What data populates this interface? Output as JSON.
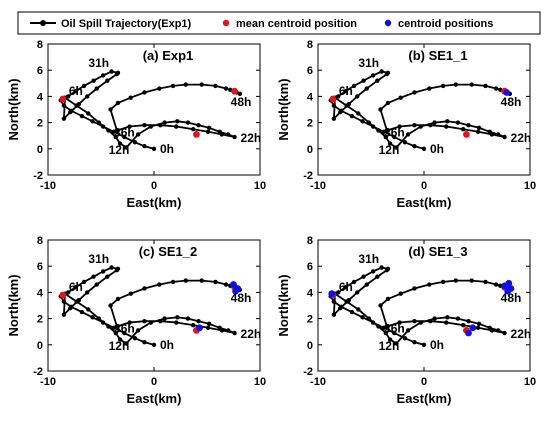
{
  "colors": {
    "trajectory": "#000000",
    "mean_centroid": "#e8121a",
    "centroid": "#1010e0",
    "panel_background": "#ffffff"
  },
  "legend": {
    "items": [
      {
        "label": "Oil Spill Trajectory(Exp1)",
        "marker": "line-dot",
        "color": "#000000"
      },
      {
        "label": "mean centroid position",
        "marker": "dot",
        "color": "#e8121a"
      },
      {
        "label": "centroid positions",
        "marker": "dot",
        "color": "#1010e0"
      }
    ]
  },
  "chart_data": [
    {
      "type": "line",
      "title": "(a) Exp1",
      "xlabel": "East(km)",
      "ylabel": "North(km)",
      "xlim": [
        -10,
        10
      ],
      "ylim": [
        -2,
        8
      ],
      "xticks": [
        -10,
        0,
        10
      ],
      "yticks": [
        -2,
        0,
        2,
        4,
        6,
        8
      ],
      "series": [
        {
          "name": "Oil Spill Trajectory(Exp1)",
          "type": "line",
          "x": [
            0,
            -0.9,
            -1.8,
            -2.8,
            -3.8,
            -4.8,
            -5.8,
            -6.8,
            -7.8,
            -8.5,
            -8.8,
            -8.1,
            -7.4,
            -6.6,
            -5.7,
            -4.8,
            -4.0,
            -3.4,
            -3.5,
            -4.4,
            -5.4,
            -6.3,
            -7.1,
            -7.9,
            -8.5,
            -8.4,
            -7.3,
            -6.2,
            -5.2,
            -4.3,
            -3.6,
            -3.2,
            -2.6,
            -1.5,
            -0.3,
            1.0,
            2.2,
            3.2,
            4.2,
            5.2,
            6.2,
            7.0,
            7.6,
            6.4,
            5.1,
            3.7,
            2.1,
            0.6,
            -0.9,
            -2.3,
            -3.5,
            -4.1,
            -3.4,
            -2.2,
            -0.9,
            0.5,
            1.8,
            3.0,
            4.5,
            5.8,
            6.8,
            7.2,
            7.8,
            8.1
          ],
          "y": [
            0,
            0.2,
            0.5,
            0.9,
            1.3,
            1.7,
            2.1,
            2.5,
            2.9,
            3.3,
            3.7,
            4.0,
            4.4,
            4.8,
            5.2,
            5.6,
            5.9,
            5.8,
            5.7,
            5.2,
            4.6,
            4.0,
            3.4,
            2.8,
            2.3,
            3.9,
            3.3,
            2.7,
            2.0,
            1.4,
            0.9,
            0.4,
            0.1,
            1.1,
            1.7,
            2.0,
            2.1,
            2.0,
            1.8,
            1.6,
            1.3,
            1.1,
            0.9,
            1.1,
            1.3,
            1.5,
            1.7,
            1.8,
            1.8,
            1.7,
            1.4,
            3.0,
            3.5,
            3.9,
            4.3,
            4.6,
            4.8,
            4.9,
            4.9,
            4.8,
            4.6,
            4.5,
            4.3,
            4.2
          ]
        },
        {
          "name": "mean centroid position",
          "type": "scatter",
          "x": [
            -8.6,
            4.0,
            7.6
          ],
          "y": [
            3.8,
            1.1,
            4.4
          ]
        }
      ],
      "annotations": [
        {
          "text": "0h",
          "x": 0,
          "y": 0
        },
        {
          "text": "6h",
          "x": -8.6,
          "y": 3.8
        },
        {
          "text": "12h",
          "x": -4.0,
          "y": 0.2
        },
        {
          "text": "22h",
          "x": 7.6,
          "y": 0.9
        },
        {
          "text": "31h",
          "x": -6.0,
          "y": 5.8
        },
        {
          "text": "36h",
          "x": -3.2,
          "y": 2.0
        },
        {
          "text": "48h",
          "x": 7.8,
          "y": 4.2
        }
      ]
    },
    {
      "type": "line",
      "title": "(b) SE1_1",
      "xlabel": "East(km)",
      "ylabel": "North(km)",
      "xlim": [
        -10,
        10
      ],
      "ylim": [
        -2,
        8
      ],
      "xticks": [
        -10,
        0,
        10
      ],
      "yticks": [
        -2,
        0,
        2,
        4,
        6,
        8
      ],
      "series": [
        {
          "name": "Oil Spill Trajectory(Exp1)",
          "type": "line",
          "x": [
            0,
            -0.9,
            -1.8,
            -2.8,
            -3.8,
            -4.8,
            -5.8,
            -6.8,
            -7.8,
            -8.5,
            -8.8,
            -8.1,
            -7.4,
            -6.6,
            -5.7,
            -4.8,
            -4.0,
            -3.4,
            -3.5,
            -4.4,
            -5.4,
            -6.3,
            -7.1,
            -7.9,
            -8.5,
            -8.4,
            -7.3,
            -6.2,
            -5.2,
            -4.3,
            -3.6,
            -3.2,
            -2.6,
            -1.5,
            -0.3,
            1.0,
            2.2,
            3.2,
            4.2,
            5.2,
            6.2,
            7.0,
            7.6,
            6.4,
            5.1,
            3.7,
            2.1,
            0.6,
            -0.9,
            -2.3,
            -3.5,
            -4.1,
            -3.4,
            -2.2,
            -0.9,
            0.5,
            1.8,
            3.0,
            4.5,
            5.8,
            6.8,
            7.2,
            7.8,
            8.1
          ],
          "y": [
            0,
            0.2,
            0.5,
            0.9,
            1.3,
            1.7,
            2.1,
            2.5,
            2.9,
            3.3,
            3.7,
            4.0,
            4.4,
            4.8,
            5.2,
            5.6,
            5.9,
            5.8,
            5.7,
            5.2,
            4.6,
            4.0,
            3.4,
            2.8,
            2.3,
            3.9,
            3.3,
            2.7,
            2.0,
            1.4,
            0.9,
            0.4,
            0.1,
            1.1,
            1.7,
            2.0,
            2.1,
            2.0,
            1.8,
            1.6,
            1.3,
            1.1,
            0.9,
            1.1,
            1.3,
            1.5,
            1.7,
            1.8,
            1.8,
            1.7,
            1.4,
            3.0,
            3.5,
            3.9,
            4.3,
            4.6,
            4.8,
            4.9,
            4.9,
            4.8,
            4.6,
            4.5,
            4.3,
            4.2
          ]
        },
        {
          "name": "mean centroid position",
          "type": "scatter",
          "x": [
            -8.6,
            4.0,
            7.6
          ],
          "y": [
            3.8,
            1.1,
            4.4
          ]
        },
        {
          "name": "centroid positions",
          "type": "scatter",
          "x": [
            7.8
          ],
          "y": [
            4.3
          ]
        }
      ],
      "annotations": [
        {
          "text": "0h",
          "x": 0,
          "y": 0
        },
        {
          "text": "6h",
          "x": -8.6,
          "y": 3.8
        },
        {
          "text": "12h",
          "x": -4.0,
          "y": 0.2
        },
        {
          "text": "22h",
          "x": 7.6,
          "y": 0.9
        },
        {
          "text": "31h",
          "x": -6.0,
          "y": 5.8
        },
        {
          "text": "36h",
          "x": -3.2,
          "y": 2.0
        },
        {
          "text": "48h",
          "x": 7.8,
          "y": 4.2
        }
      ]
    },
    {
      "type": "line",
      "title": "(c) SE1_2",
      "xlabel": "East(km)",
      "ylabel": "North(km)",
      "xlim": [
        -10,
        10
      ],
      "ylim": [
        -2,
        8
      ],
      "xticks": [
        -10,
        0,
        10
      ],
      "yticks": [
        -2,
        0,
        2,
        4,
        6,
        8
      ],
      "series": [
        {
          "name": "Oil Spill Trajectory(Exp1)",
          "type": "line",
          "x": [
            0,
            -0.9,
            -1.8,
            -2.8,
            -3.8,
            -4.8,
            -5.8,
            -6.8,
            -7.8,
            -8.5,
            -8.8,
            -8.1,
            -7.4,
            -6.6,
            -5.7,
            -4.8,
            -4.0,
            -3.4,
            -3.5,
            -4.4,
            -5.4,
            -6.3,
            -7.1,
            -7.9,
            -8.5,
            -8.4,
            -7.3,
            -6.2,
            -5.2,
            -4.3,
            -3.6,
            -3.2,
            -2.6,
            -1.5,
            -0.3,
            1.0,
            2.2,
            3.2,
            4.2,
            5.2,
            6.2,
            7.0,
            7.6,
            6.4,
            5.1,
            3.7,
            2.1,
            0.6,
            -0.9,
            -2.3,
            -3.5,
            -4.1,
            -3.4,
            -2.2,
            -0.9,
            0.5,
            1.8,
            3.0,
            4.5,
            5.8,
            6.8,
            7.2,
            7.8,
            8.1
          ],
          "y": [
            0,
            0.2,
            0.5,
            0.9,
            1.3,
            1.7,
            2.1,
            2.5,
            2.9,
            3.3,
            3.7,
            4.0,
            4.4,
            4.8,
            5.2,
            5.6,
            5.9,
            5.8,
            5.7,
            5.2,
            4.6,
            4.0,
            3.4,
            2.8,
            2.3,
            3.9,
            3.3,
            2.7,
            2.0,
            1.4,
            0.9,
            0.4,
            0.1,
            1.1,
            1.7,
            2.0,
            2.1,
            2.0,
            1.8,
            1.6,
            1.3,
            1.1,
            0.9,
            1.1,
            1.3,
            1.5,
            1.7,
            1.8,
            1.8,
            1.7,
            1.4,
            3.0,
            3.5,
            3.9,
            4.3,
            4.6,
            4.8,
            4.9,
            4.9,
            4.8,
            4.6,
            4.5,
            4.3,
            4.2
          ]
        },
        {
          "name": "mean centroid position",
          "type": "scatter",
          "x": [
            -8.6,
            4.0,
            7.6
          ],
          "y": [
            3.8,
            1.1,
            4.4
          ]
        },
        {
          "name": "centroid positions",
          "type": "scatter",
          "x": [
            4.3,
            7.5,
            7.9,
            7.7
          ],
          "y": [
            1.3,
            4.6,
            4.3,
            4.1
          ]
        }
      ],
      "annotations": [
        {
          "text": "0h",
          "x": 0,
          "y": 0
        },
        {
          "text": "6h",
          "x": -8.6,
          "y": 3.8
        },
        {
          "text": "12h",
          "x": -4.0,
          "y": 0.2
        },
        {
          "text": "22h",
          "x": 7.6,
          "y": 0.9
        },
        {
          "text": "31h",
          "x": -6.0,
          "y": 5.8
        },
        {
          "text": "36h",
          "x": -3.2,
          "y": 2.0
        },
        {
          "text": "48h",
          "x": 7.8,
          "y": 4.2
        }
      ]
    },
    {
      "type": "line",
      "title": "(d) SE1_3",
      "xlabel": "East(km)",
      "ylabel": "North(km)",
      "xlim": [
        -10,
        10
      ],
      "ylim": [
        -2,
        8
      ],
      "xticks": [
        -10,
        0,
        10
      ],
      "yticks": [
        -2,
        0,
        2,
        4,
        6,
        8
      ],
      "series": [
        {
          "name": "Oil Spill Trajectory(Exp1)",
          "type": "line",
          "x": [
            0,
            -0.9,
            -1.8,
            -2.8,
            -3.8,
            -4.8,
            -5.8,
            -6.8,
            -7.8,
            -8.5,
            -8.8,
            -8.1,
            -7.4,
            -6.6,
            -5.7,
            -4.8,
            -4.0,
            -3.4,
            -3.5,
            -4.4,
            -5.4,
            -6.3,
            -7.1,
            -7.9,
            -8.5,
            -8.4,
            -7.3,
            -6.2,
            -5.2,
            -4.3,
            -3.6,
            -3.2,
            -2.6,
            -1.5,
            -0.3,
            1.0,
            2.2,
            3.2,
            4.2,
            5.2,
            6.2,
            7.0,
            7.6,
            6.4,
            5.1,
            3.7,
            2.1,
            0.6,
            -0.9,
            -2.3,
            -3.5,
            -4.1,
            -3.4,
            -2.2,
            -0.9,
            0.5,
            1.8,
            3.0,
            4.5,
            5.8,
            6.8,
            7.2,
            7.8,
            8.1
          ],
          "y": [
            0,
            0.2,
            0.5,
            0.9,
            1.3,
            1.7,
            2.1,
            2.5,
            2.9,
            3.3,
            3.7,
            4.0,
            4.4,
            4.8,
            5.2,
            5.6,
            5.9,
            5.8,
            5.7,
            5.2,
            4.6,
            4.0,
            3.4,
            2.8,
            2.3,
            3.9,
            3.3,
            2.7,
            2.0,
            1.4,
            0.9,
            0.4,
            0.1,
            1.1,
            1.7,
            2.0,
            2.1,
            2.0,
            1.8,
            1.6,
            1.3,
            1.1,
            0.9,
            1.1,
            1.3,
            1.5,
            1.7,
            1.8,
            1.8,
            1.7,
            1.4,
            3.0,
            3.5,
            3.9,
            4.3,
            4.6,
            4.8,
            4.9,
            4.9,
            4.8,
            4.6,
            4.5,
            4.3,
            4.2
          ]
        },
        {
          "name": "mean centroid position",
          "type": "scatter",
          "x": [
            -8.6,
            4.0,
            7.6
          ],
          "y": [
            3.8,
            1.1,
            4.4
          ]
        },
        {
          "name": "centroid positions",
          "type": "scatter",
          "x": [
            -8.7,
            4.2,
            4.6,
            8.0,
            7.6,
            7.9,
            8.2
          ],
          "y": [
            3.9,
            0.9,
            1.3,
            4.7,
            4.5,
            4.1,
            4.3
          ]
        }
      ],
      "annotations": [
        {
          "text": "0h",
          "x": 0,
          "y": 0
        },
        {
          "text": "6h",
          "x": -8.6,
          "y": 3.8
        },
        {
          "text": "12h",
          "x": -4.0,
          "y": 0.2
        },
        {
          "text": "22h",
          "x": 7.6,
          "y": 0.9
        },
        {
          "text": "31h",
          "x": -6.0,
          "y": 5.8
        },
        {
          "text": "36h",
          "x": -3.2,
          "y": 2.0
        },
        {
          "text": "48h",
          "x": 7.8,
          "y": 4.2
        }
      ]
    }
  ]
}
